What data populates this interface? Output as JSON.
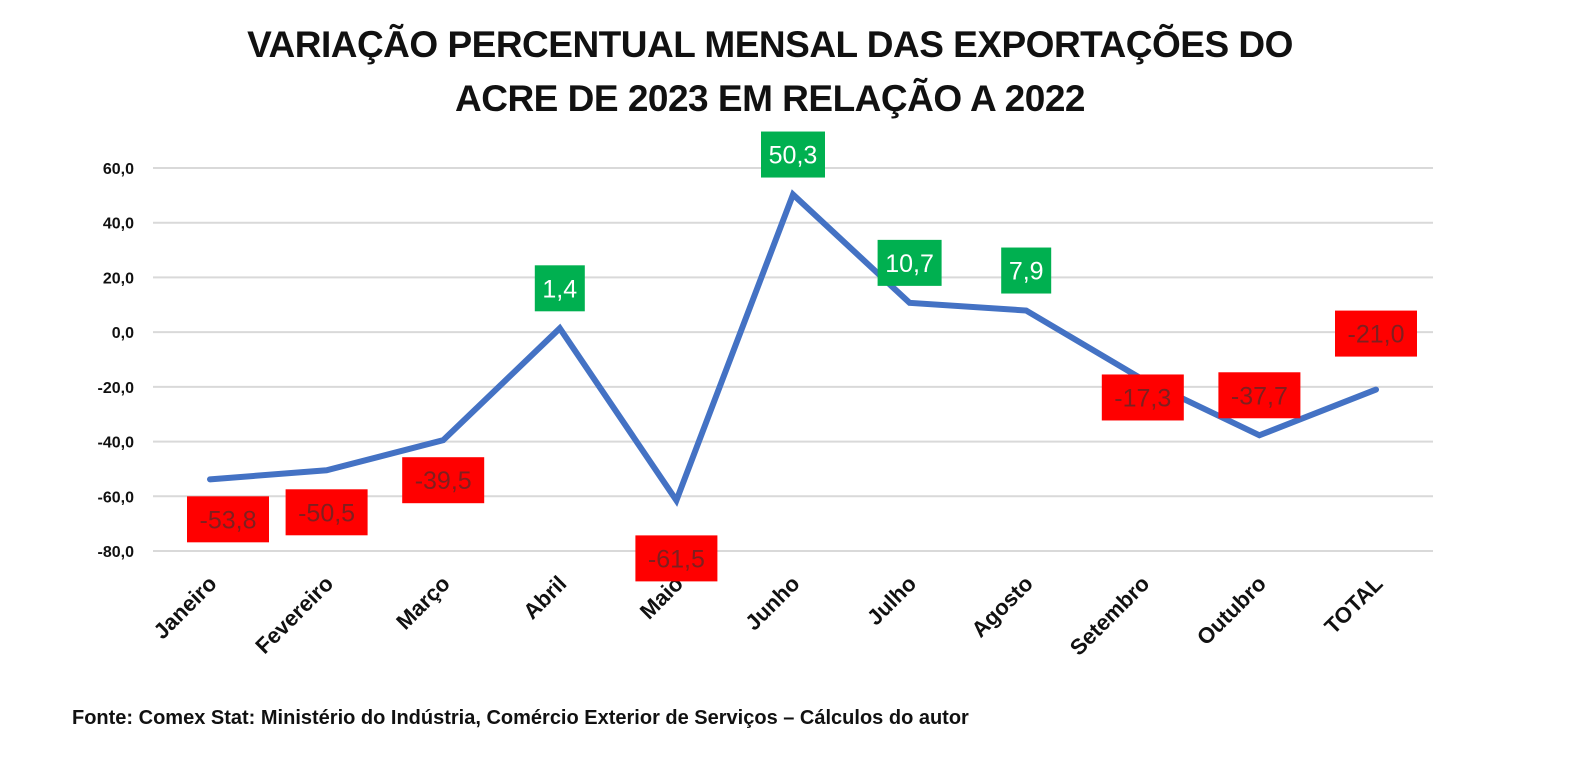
{
  "chart_data": {
    "type": "line",
    "title": "VARIAÇÃO PERCENTUAL MENSAL DAS EXPORTAÇÕES DO ACRE DE 2023 EM RELAÇÃO A 2022",
    "title_lines": [
      "VARIAÇÃO PERCENTUAL MENSAL DAS EXPORTAÇÕES DO",
      "ACRE DE 2023 EM RELAÇÃO A 2022"
    ],
    "xlabel": "",
    "ylabel": "",
    "categories": [
      "Janeiro",
      "Fevereiro",
      "Março",
      "Abril",
      "Maio",
      "Junho",
      "Julho",
      "Agosto",
      "Setembro",
      "Outubro",
      "TOTAL"
    ],
    "series": [
      {
        "name": "Variação percentual",
        "values": [
          -53.8,
          -50.5,
          -39.5,
          1.4,
          -61.5,
          50.3,
          10.7,
          7.9,
          -17.3,
          -37.7,
          -21.0
        ],
        "data_labels": [
          "-53,8",
          "-50,5",
          "-39,5",
          "1,4",
          "-61,5",
          "50,3",
          "10,7",
          "7,9",
          "-17,3",
          "-37,7",
          "-21,0"
        ],
        "color": "#4472C4"
      }
    ],
    "ylim": [
      -80,
      60
    ],
    "yticks": [
      60,
      40,
      20,
      0,
      -20,
      -40,
      -60,
      -80
    ],
    "ytick_labels": [
      "60,0",
      "40,0",
      "20,0",
      "0,0",
      "-20,0",
      "-40,0",
      "-60,0",
      "-80,0"
    ],
    "grid": true,
    "legend": "none",
    "label_colors": {
      "positive_bg": "#00B050",
      "positive_text": "#FFFFFF",
      "negative_bg": "#FF0000",
      "negative_text": "#7F1F1F"
    },
    "gridline_color": "#D9D9D9"
  },
  "source_note": "Fonte: Comex Stat: Ministério do Indústria, Comércio Exterior de Serviços – Cálculos do autor"
}
